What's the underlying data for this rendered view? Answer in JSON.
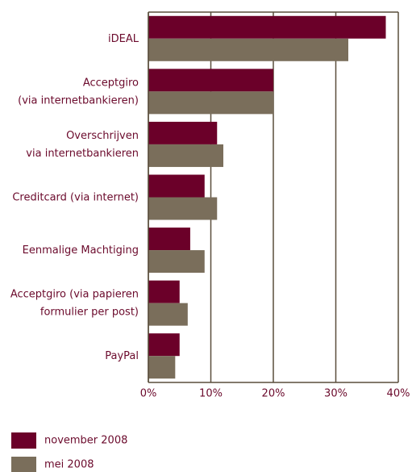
{
  "chart_data": {
    "type": "bar",
    "orientation": "horizontal",
    "categories": [
      [
        "iDEAL"
      ],
      [
        "Acceptgiro",
        "(via internetbankieren)"
      ],
      [
        "Overschrijven",
        "via internetbankieren"
      ],
      [
        "Creditcard (via internet)"
      ],
      [
        "Eenmalige Machtiging"
      ],
      [
        "Acceptgiro (via papieren",
        "formulier per post)"
      ],
      [
        "PayPal"
      ]
    ],
    "series": [
      {
        "name": "november 2008",
        "color": "#6b0029",
        "values": [
          38,
          20,
          11,
          9,
          6.7,
          5,
          5
        ]
      },
      {
        "name": "mei 2008",
        "color": "#7a6e5b",
        "values": [
          32,
          20,
          12,
          11,
          9,
          6.3,
          4.3
        ]
      }
    ],
    "xlim": [
      0,
      40
    ],
    "xticks": [
      {
        "value": 0,
        "label": "0%"
      },
      {
        "value": 10,
        "label": "10%"
      },
      {
        "value": 20,
        "label": "20%"
      },
      {
        "value": 30,
        "label": "30%"
      },
      {
        "value": 40,
        "label": "40%"
      }
    ],
    "grid": true,
    "legend": "bottom-left"
  }
}
